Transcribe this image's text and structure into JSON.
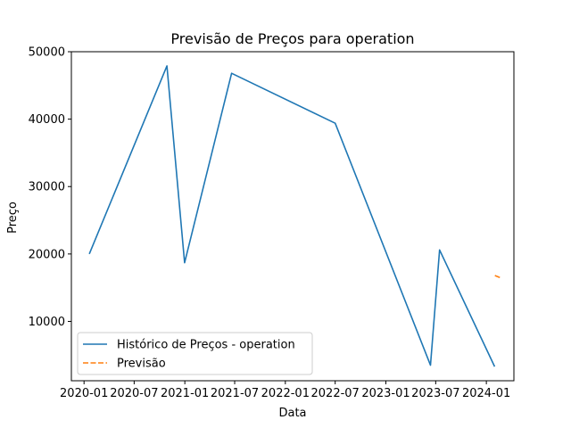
{
  "chart_data": {
    "type": "line",
    "title": "Previsão de Preços para operation",
    "xlabel": "Data",
    "ylabel": "Preço",
    "x_ticks": [
      "2020-01",
      "2020-07",
      "2021-01",
      "2021-07",
      "2022-01",
      "2022-07",
      "2023-01",
      "2023-07",
      "2024-01"
    ],
    "y_ticks": [
      "10000",
      "20000",
      "30000",
      "40000",
      "50000"
    ],
    "xlim": [
      "2019-11-16",
      "2024-04-10"
    ],
    "ylim": [
      1200,
      50000
    ],
    "grid": false,
    "legend_position": "lower-left",
    "series": [
      {
        "name": "Histórico de Preços - operation",
        "color": "#1f77b4",
        "style": "solid",
        "points": [
          {
            "x": "2020-01-20",
            "y": 20000
          },
          {
            "x": "2020-10-28",
            "y": 47900
          },
          {
            "x": "2020-12-31",
            "y": 18700
          },
          {
            "x": "2021-06-20",
            "y": 46800
          },
          {
            "x": "2022-07-01",
            "y": 39400
          },
          {
            "x": "2023-06-12",
            "y": 3500
          },
          {
            "x": "2023-07-15",
            "y": 20600
          },
          {
            "x": "2024-01-31",
            "y": 3300
          }
        ]
      },
      {
        "name": "Previsão",
        "color": "#ff7f0e",
        "style": "dashed",
        "points": [
          {
            "x": "2024-02-01",
            "y": 16800
          },
          {
            "x": "2024-02-26",
            "y": 16400
          }
        ]
      }
    ]
  }
}
